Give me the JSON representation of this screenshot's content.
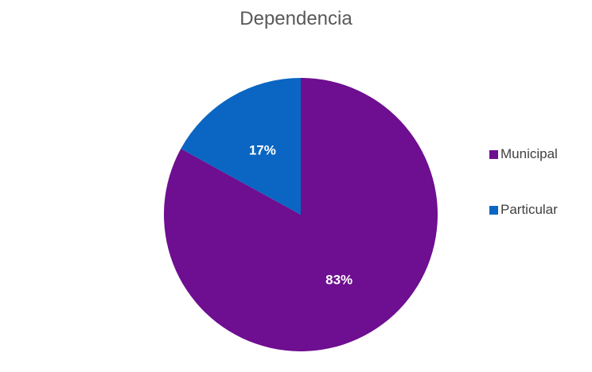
{
  "chart_data": {
    "type": "pie",
    "title": "Dependencia",
    "slices": [
      {
        "label": "Municipal",
        "value": 83,
        "data_label": "83%",
        "color": "#6E0E91"
      },
      {
        "label": "Particular",
        "value": 17,
        "data_label": "17%",
        "color": "#0A66C2"
      }
    ],
    "legend_position": "right"
  }
}
